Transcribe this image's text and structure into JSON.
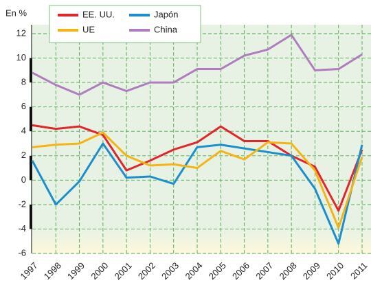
{
  "chart_data": {
    "type": "line",
    "y_label": "En %",
    "categories": [
      "1997",
      "1998",
      "1999",
      "2000",
      "2001",
      "2002",
      "2003",
      "2004",
      "2005",
      "2006",
      "2007",
      "2008",
      "2009",
      "2010",
      "2011"
    ],
    "series": [
      {
        "name": "EE. UU.",
        "color": "#e2252b",
        "values": [
          4.5,
          4.2,
          4.4,
          3.7,
          0.8,
          1.6,
          2.5,
          3.1,
          4.4,
          3.2,
          3.2,
          2.0,
          1.1,
          -2.5,
          2.5
        ]
      },
      {
        "name": "Japón",
        "color": "#1a8fcf",
        "values": [
          1.6,
          -2.0,
          -0.1,
          3.0,
          0.2,
          0.3,
          -0.3,
          2.7,
          2.9,
          2.6,
          2.3,
          2.0,
          -0.7,
          -5.2,
          2.9
        ]
      },
      {
        "name": "UE",
        "color": "#f6b412",
        "values": [
          2.7,
          2.9,
          3.0,
          3.9,
          2.0,
          1.2,
          1.3,
          1.0,
          2.4,
          1.7,
          3.1,
          3.0,
          0.8,
          -3.9,
          1.9
        ]
      },
      {
        "name": "China",
        "color": "#b07cbf",
        "values": [
          8.8,
          7.8,
          7.0,
          8.0,
          7.3,
          8.0,
          8.0,
          9.1,
          9.1,
          10.2,
          10.7,
          11.9,
          9.0,
          9.1,
          10.3
        ]
      }
    ],
    "ylim": [
      -6,
      12
    ],
    "yticks": [
      -6,
      -4,
      -2,
      0,
      2,
      4,
      6,
      8,
      10,
      12
    ],
    "grid": true,
    "legend": "upper left"
  }
}
